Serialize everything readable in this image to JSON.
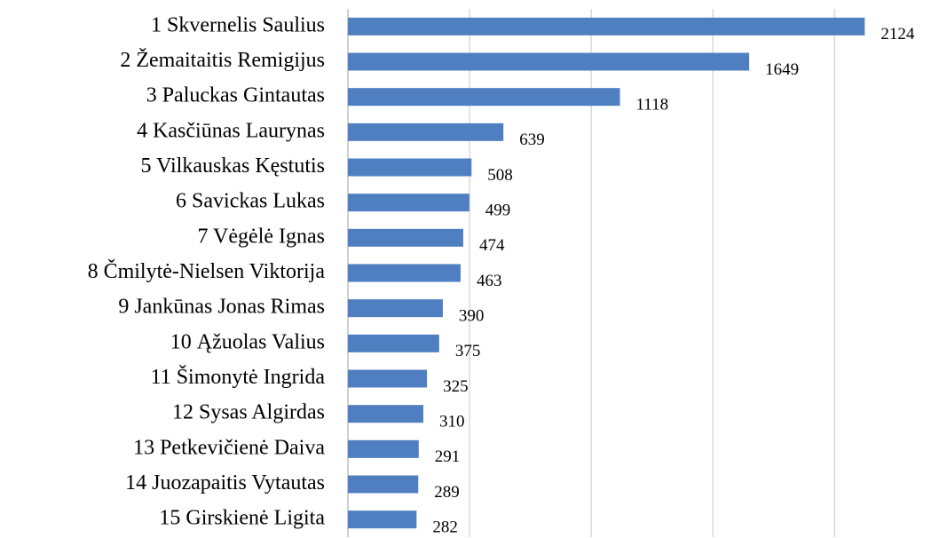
{
  "chart_data": {
    "type": "barh",
    "categories": [
      "1 Skvernelis Saulius",
      "2 Žemaitaitis Remigijus",
      "3 Paluckas Gintautas",
      "4 Kasčiūnas Laurynas",
      "5 Vilkauskas Kęstutis",
      "6 Savickas Lukas",
      "7 Vėgėlė Ignas",
      "8 Čmilytė-Nielsen Viktorija",
      "9 Jankūnas Jonas Rimas",
      "10 Ąžuolas Valius",
      "11 Šimonytė Ingrida",
      "12 Sysas Algirdas",
      "13 Petkevičienė Daiva",
      "14 Juozapaitis Vytautas",
      "15 Girskienė Ligita"
    ],
    "values": [
      2124,
      1649,
      1118,
      639,
      508,
      499,
      474,
      463,
      390,
      375,
      325,
      310,
      291,
      289,
      282
    ],
    "color": "#4f7fc0",
    "xlim": [
      0,
      2400
    ],
    "xticks": [
      0,
      500,
      1000,
      1500,
      2000
    ],
    "grid": true
  }
}
